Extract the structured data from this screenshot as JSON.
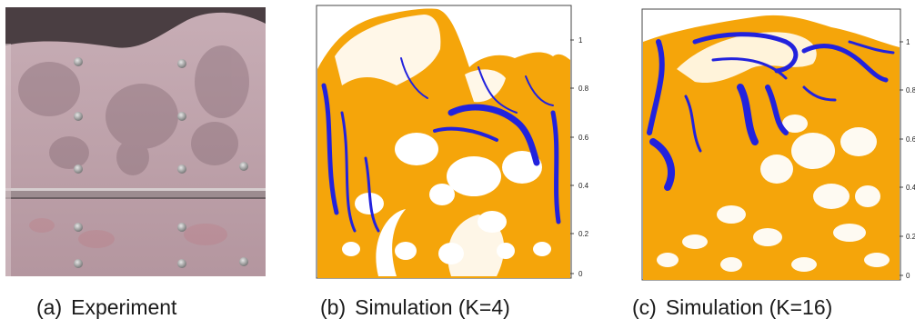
{
  "figure": {
    "panels": [
      {
        "id": "a",
        "label": "(a)",
        "caption": "Experiment",
        "type": "photo",
        "description_colors": {
          "wall": "#b79aa4",
          "shadow": "#8f7680",
          "bolt": "#9a9a9a"
        }
      },
      {
        "id": "b",
        "label": "(b)",
        "caption": "Simulation (K=4)",
        "type": "simulation",
        "y_ticks": [
          "0",
          "0.2",
          "0.4",
          "0.6",
          "0.8",
          "1"
        ],
        "colors": {
          "fluid_light": "#f5a50a",
          "fluid_heavy": "#2222dd",
          "background": "#ffffff"
        }
      },
      {
        "id": "c",
        "label": "(c)",
        "caption": "Simulation (K=16)",
        "type": "simulation",
        "y_ticks": [
          "0",
          "0.2",
          "0.4",
          "0.6",
          "0.8",
          "1"
        ],
        "colors": {
          "fluid_light": "#f5a50a",
          "fluid_heavy": "#2222dd",
          "background": "#ffffff"
        }
      }
    ]
  }
}
